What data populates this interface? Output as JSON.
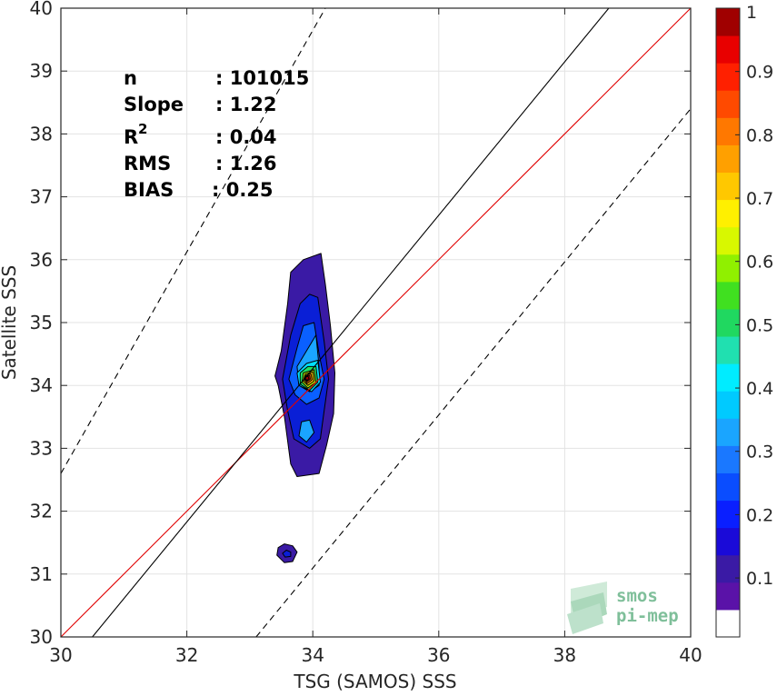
{
  "chart_data": {
    "type": "contour",
    "xlabel": "TSG (SAMOS) SSS",
    "ylabel": "Satellite SSS",
    "xlim": [
      30,
      40
    ],
    "ylim": [
      30,
      40
    ],
    "x_ticks": [
      30,
      32,
      34,
      36,
      38,
      40
    ],
    "y_ticks": [
      30,
      31,
      32,
      33,
      34,
      35,
      36,
      37,
      38,
      39,
      40
    ],
    "grid": true,
    "stats": {
      "n_label": "n",
      "n_value": ": 101015",
      "slope_label": "Slope",
      "slope_value": ": 1.22",
      "r2_label": "R",
      "r2_sup": "2",
      "r2_value": ": 0.04",
      "rms_label": "RMS",
      "rms_value": ": 1.26",
      "bias_label": "BIAS",
      "bias_value": ": 0.25"
    },
    "lines": [
      {
        "role": "one-to-one",
        "color": "#e00000",
        "style": "solid",
        "x": [
          30,
          40
        ],
        "y": [
          30,
          40
        ]
      },
      {
        "role": "regression fit",
        "color": "#000000",
        "style": "solid",
        "x": [
          30.5,
          38.7
        ],
        "y": [
          30,
          40
        ]
      },
      {
        "role": "upper bound",
        "color": "#000000",
        "style": "dashed",
        "x": [
          30,
          34.2
        ],
        "y": [
          32.6,
          40
        ]
      },
      {
        "role": "lower bound",
        "color": "#000000",
        "style": "dashed",
        "x": [
          33.1,
          40
        ],
        "y": [
          30,
          38.4
        ]
      }
    ],
    "contours": [
      {
        "level": 0.05,
        "color": "#3a1aa5",
        "points": [
          [
            34.13,
            36.1
          ],
          [
            34.2,
            35.6
          ],
          [
            34.28,
            34.95
          ],
          [
            34.35,
            34.2
          ],
          [
            34.33,
            33.55
          ],
          [
            34.22,
            33.05
          ],
          [
            34.1,
            32.6
          ],
          [
            33.75,
            32.55
          ],
          [
            33.65,
            32.75
          ],
          [
            33.55,
            33.5
          ],
          [
            33.45,
            34.0
          ],
          [
            33.4,
            34.15
          ],
          [
            33.5,
            34.55
          ],
          [
            33.6,
            35.3
          ],
          [
            33.65,
            35.8
          ],
          [
            33.85,
            36.0
          ]
        ]
      },
      {
        "level": 0.05,
        "color": "#3a1aa5",
        "points": [
          [
            33.55,
            31.48
          ],
          [
            33.68,
            31.45
          ],
          [
            33.75,
            31.35
          ],
          [
            33.68,
            31.2
          ],
          [
            33.55,
            31.18
          ],
          [
            33.43,
            31.3
          ],
          [
            33.45,
            31.42
          ]
        ]
      },
      {
        "level": 0.1,
        "color": "#0a1fd6",
        "points": [
          [
            34.08,
            35.4
          ],
          [
            34.18,
            34.7
          ],
          [
            34.25,
            34.1
          ],
          [
            34.18,
            33.6
          ],
          [
            34.12,
            33.15
          ],
          [
            33.95,
            33.0
          ],
          [
            33.7,
            33.15
          ],
          [
            33.6,
            33.6
          ],
          [
            33.52,
            34.1
          ],
          [
            33.65,
            34.8
          ],
          [
            33.8,
            35.3
          ],
          [
            33.95,
            35.45
          ]
        ]
      },
      {
        "level": 0.15,
        "color": "#0a1fd6",
        "points": [
          [
            33.58,
            31.38
          ],
          [
            33.65,
            31.35
          ],
          [
            33.65,
            31.28
          ],
          [
            33.56,
            31.27
          ],
          [
            33.52,
            31.33
          ]
        ]
      },
      {
        "level": 0.2,
        "color": "#0a60ff",
        "points": [
          [
            34.02,
            35.0
          ],
          [
            34.1,
            34.5
          ],
          [
            34.18,
            34.1
          ],
          [
            34.1,
            33.8
          ],
          [
            33.9,
            33.7
          ],
          [
            33.72,
            33.85
          ],
          [
            33.62,
            34.1
          ],
          [
            33.75,
            34.6
          ],
          [
            33.85,
            34.95
          ]
        ]
      },
      {
        "level": 0.3,
        "color": "#1aa5ff",
        "points": [
          [
            34.05,
            34.8
          ],
          [
            34.1,
            34.3
          ],
          [
            34.1,
            34.0
          ],
          [
            33.95,
            33.9
          ],
          [
            33.78,
            34.0
          ],
          [
            33.75,
            34.3
          ],
          [
            33.9,
            34.55
          ]
        ]
      },
      {
        "level": 0.3,
        "color": "#1aa5ff",
        "points": [
          [
            33.95,
            33.45
          ],
          [
            34.02,
            33.25
          ],
          [
            33.9,
            33.1
          ],
          [
            33.78,
            33.2
          ],
          [
            33.82,
            33.42
          ]
        ]
      },
      {
        "level": 0.4,
        "color": "#00e0ff",
        "points": [
          [
            34.08,
            34.4
          ],
          [
            34.12,
            34.05
          ],
          [
            33.98,
            33.9
          ],
          [
            33.78,
            34.0
          ],
          [
            33.75,
            34.2
          ],
          [
            33.9,
            34.35
          ]
        ]
      },
      {
        "level": 0.5,
        "color": "#20e060",
        "points": [
          [
            34.05,
            34.3
          ],
          [
            34.08,
            34.05
          ],
          [
            33.95,
            33.92
          ],
          [
            33.8,
            34.02
          ],
          [
            33.8,
            34.2
          ],
          [
            33.92,
            34.3
          ]
        ]
      },
      {
        "level": 0.6,
        "color": "#c0f000",
        "points": [
          [
            34.02,
            34.25
          ],
          [
            34.05,
            34.05
          ],
          [
            33.92,
            33.96
          ],
          [
            33.83,
            34.05
          ],
          [
            33.85,
            34.2
          ]
        ]
      },
      {
        "level": 0.7,
        "color": "#ffc000",
        "points": [
          [
            34.0,
            34.22
          ],
          [
            34.02,
            34.07
          ],
          [
            33.92,
            34.0
          ],
          [
            33.85,
            34.07
          ],
          [
            33.88,
            34.18
          ]
        ]
      },
      {
        "level": 0.8,
        "color": "#ff7000",
        "points": [
          [
            33.97,
            34.19
          ],
          [
            33.99,
            34.09
          ],
          [
            33.91,
            34.03
          ],
          [
            33.86,
            34.1
          ],
          [
            33.89,
            34.16
          ]
        ]
      },
      {
        "level": 0.9,
        "color": "#ff1010",
        "points": [
          [
            33.95,
            34.16
          ],
          [
            33.96,
            34.1
          ],
          [
            33.91,
            34.06
          ],
          [
            33.87,
            34.11
          ],
          [
            33.9,
            34.15
          ]
        ]
      },
      {
        "level": 1.0,
        "color": "#a00000",
        "points": [
          [
            33.93,
            34.14
          ],
          [
            33.94,
            34.11
          ],
          [
            33.91,
            34.08
          ],
          [
            33.88,
            34.11
          ],
          [
            33.9,
            34.14
          ]
        ]
      }
    ],
    "colorbar": {
      "ticks": [
        "0.1",
        "0.2",
        "0.3",
        "0.4",
        "0.5",
        "0.6",
        "0.7",
        "0.8",
        "0.9",
        "1"
      ],
      "tick_values": [
        0.1,
        0.2,
        0.3,
        0.4,
        0.5,
        0.6,
        0.7,
        0.8,
        0.9,
        1.0
      ],
      "colors": [
        "#ffffff",
        "#5a12a8",
        "#3a1aa5",
        "#1a0ad8",
        "#0a1fff",
        "#0a4dff",
        "#1a78ff",
        "#1aa5ff",
        "#00caff",
        "#00ecff",
        "#20e0b0",
        "#20d860",
        "#40e020",
        "#90f000",
        "#d8f800",
        "#fff000",
        "#ffc800",
        "#ffa000",
        "#ff7800",
        "#ff4a00",
        "#ff2000",
        "#e80000",
        "#a00000"
      ]
    }
  },
  "logo": {
    "line1": "smos",
    "line2": "pi-mep"
  }
}
